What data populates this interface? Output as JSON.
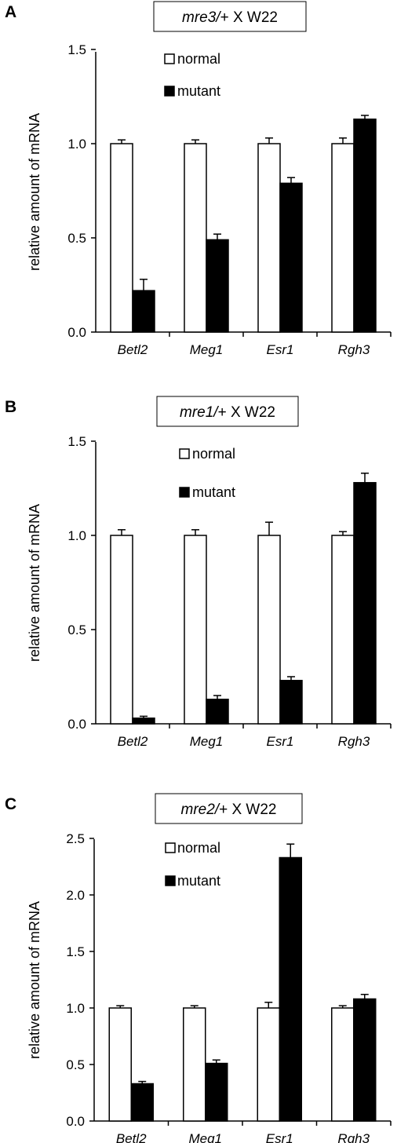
{
  "chart_data": [
    {
      "panel": "A",
      "type": "bar",
      "title": "mre3/+ X W22",
      "title_italic": "mre3/",
      "title_rest": "+ X W22",
      "ylabel": "relative amount of mRNA",
      "ylim": [
        0,
        1.5
      ],
      "yticks": [
        "0.0",
        "0.5",
        "1.0",
        "1.5"
      ],
      "categories": [
        "Betl2",
        "Meg1",
        "Esr1",
        "Rgh3"
      ],
      "series": [
        {
          "name": "normal",
          "fill": "#ffffff",
          "values": [
            1.0,
            1.0,
            1.0,
            1.0
          ],
          "errors": [
            0.02,
            0.02,
            0.03,
            0.03
          ]
        },
        {
          "name": "mutant",
          "fill": "#000000",
          "values": [
            0.22,
            0.49,
            0.79,
            1.13
          ],
          "errors": [
            0.06,
            0.03,
            0.03,
            0.02
          ]
        }
      ],
      "legend_position": "top-center",
      "grid": false
    },
    {
      "panel": "B",
      "type": "bar",
      "title": "mre1/+ X W22",
      "title_italic": "mre1/",
      "title_rest": "+ X W22",
      "ylabel": "relative amount of mRNA",
      "ylim": [
        0,
        1.5
      ],
      "yticks": [
        "0.0",
        "0.5",
        "1.0",
        "1.5"
      ],
      "categories": [
        "Betl2",
        "Meg1",
        "Esr1",
        "Rgh3"
      ],
      "series": [
        {
          "name": "normal",
          "fill": "#ffffff",
          "values": [
            1.0,
            1.0,
            1.0,
            1.0
          ],
          "errors": [
            0.03,
            0.03,
            0.07,
            0.02
          ]
        },
        {
          "name": "mutant",
          "fill": "#000000",
          "values": [
            0.03,
            0.13,
            0.23,
            1.28
          ],
          "errors": [
            0.01,
            0.02,
            0.02,
            0.05
          ]
        }
      ],
      "legend_position": "top-center",
      "grid": false
    },
    {
      "panel": "C",
      "type": "bar",
      "title": "mre2/+ X W22",
      "title_italic": "mre2/",
      "title_rest": "+ X W22",
      "ylabel": "relative amount of mRNA",
      "ylim": [
        0,
        2.5
      ],
      "yticks": [
        "0.0",
        "0.5",
        "1.0",
        "1.5",
        "2.0",
        "2.5"
      ],
      "categories": [
        "Betl2",
        "Meg1",
        "Esr1",
        "Rgh3"
      ],
      "series": [
        {
          "name": "normal",
          "fill": "#ffffff",
          "values": [
            1.0,
            1.0,
            1.0,
            1.0
          ],
          "errors": [
            0.02,
            0.02,
            0.05,
            0.02
          ]
        },
        {
          "name": "mutant",
          "fill": "#000000",
          "values": [
            0.33,
            0.51,
            2.33,
            1.08
          ],
          "errors": [
            0.02,
            0.03,
            0.12,
            0.04
          ]
        }
      ],
      "legend_position": "top-center",
      "grid": false
    }
  ]
}
